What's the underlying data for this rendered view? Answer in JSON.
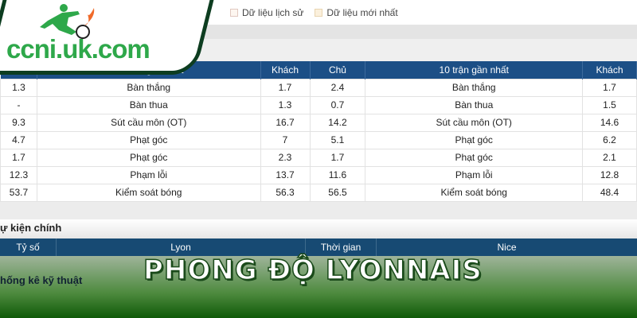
{
  "logo": {
    "text": "ccni.uk.com"
  },
  "filters": [
    {
      "label": "Dữ liệu lịch sử"
    },
    {
      "label": "Dữ liệu mới nhất"
    }
  ],
  "stats_table": {
    "headers": [
      "",
      "10 trận gần nhất",
      "Khách",
      "Chủ",
      "10 trận gần nhất",
      "Khách"
    ],
    "rows": [
      [
        "1.3",
        "Bàn thắng",
        "1.7",
        "2.4",
        "Bàn thắng",
        "1.7"
      ],
      [
        "-",
        "Bàn thua",
        "1.3",
        "0.7",
        "Bàn thua",
        "1.5"
      ],
      [
        "9.3",
        "Sút cầu môn (OT)",
        "16.7",
        "14.2",
        "Sút cầu môn (OT)",
        "14.6"
      ],
      [
        "4.7",
        "Phạt góc",
        "7",
        "5.1",
        "Phạt góc",
        "6.2"
      ],
      [
        "1.7",
        "Phạt góc",
        "2.3",
        "1.7",
        "Phạt góc",
        "2.1"
      ],
      [
        "12.3",
        "Phạm lỗi",
        "13.7",
        "11.6",
        "Phạm lỗi",
        "12.8"
      ],
      [
        "53.7",
        "Kiểm soát bóng",
        "56.3",
        "56.5",
        "Kiểm soát bóng",
        "48.4"
      ]
    ]
  },
  "events": {
    "title": "ự kiện chính",
    "headers": [
      "Tỷ số",
      "Lyon",
      "Thời gian",
      "Nice"
    ]
  },
  "tech_stats": {
    "title": "hống kê kỹ thuật"
  },
  "banner": {
    "title": "PHONG ĐỘ LYONNAIS"
  }
}
